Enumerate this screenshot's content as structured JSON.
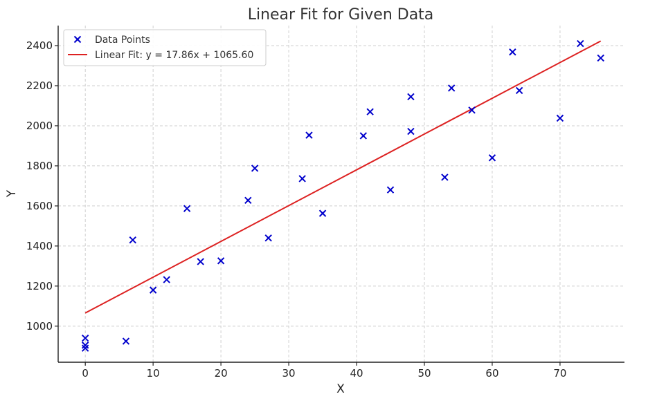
{
  "chart_data": {
    "type": "scatter",
    "title": "Linear Fit for Given Data",
    "xlabel": "X",
    "ylabel": "Y",
    "xlim": [
      -4,
      79.5
    ],
    "ylim": [
      820,
      2500
    ],
    "xticks": [
      0,
      10,
      20,
      30,
      40,
      50,
      60,
      70
    ],
    "yticks": [
      1000,
      1200,
      1400,
      1600,
      1800,
      2000,
      2200,
      2400
    ],
    "grid": true,
    "legend_position": "top-left",
    "colors": {
      "points": "#0000cc",
      "fit": "#dd2222",
      "grid": "#cfcfcf",
      "axis": "#222222"
    },
    "series": [
      {
        "name": "Data Points",
        "marker": "x",
        "points": [
          {
            "x": 0,
            "y": 940
          },
          {
            "x": 0,
            "y": 905
          },
          {
            "x": 0,
            "y": 890
          },
          {
            "x": 6,
            "y": 925
          },
          {
            "x": 7,
            "y": 1430
          },
          {
            "x": 10,
            "y": 1180
          },
          {
            "x": 12,
            "y": 1232
          },
          {
            "x": 15,
            "y": 1587
          },
          {
            "x": 17,
            "y": 1322
          },
          {
            "x": 20,
            "y": 1326
          },
          {
            "x": 24,
            "y": 1628
          },
          {
            "x": 25,
            "y": 1788
          },
          {
            "x": 27,
            "y": 1440
          },
          {
            "x": 32,
            "y": 1736
          },
          {
            "x": 33,
            "y": 1953
          },
          {
            "x": 35,
            "y": 1563
          },
          {
            "x": 41,
            "y": 1950
          },
          {
            "x": 42,
            "y": 2070
          },
          {
            "x": 45,
            "y": 1680
          },
          {
            "x": 48,
            "y": 2145
          },
          {
            "x": 48,
            "y": 1972
          },
          {
            "x": 53,
            "y": 1743
          },
          {
            "x": 54,
            "y": 2188
          },
          {
            "x": 57,
            "y": 2078
          },
          {
            "x": 60,
            "y": 1840
          },
          {
            "x": 63,
            "y": 2368
          },
          {
            "x": 64,
            "y": 2176
          },
          {
            "x": 70,
            "y": 2038
          },
          {
            "x": 73,
            "y": 2410
          },
          {
            "x": 76,
            "y": 2338
          }
        ]
      },
      {
        "name": "Linear Fit: y = 17.86x + 1065.60",
        "type": "line",
        "slope": 17.86,
        "intercept": 1065.6,
        "x_range": [
          0,
          76
        ]
      }
    ]
  }
}
